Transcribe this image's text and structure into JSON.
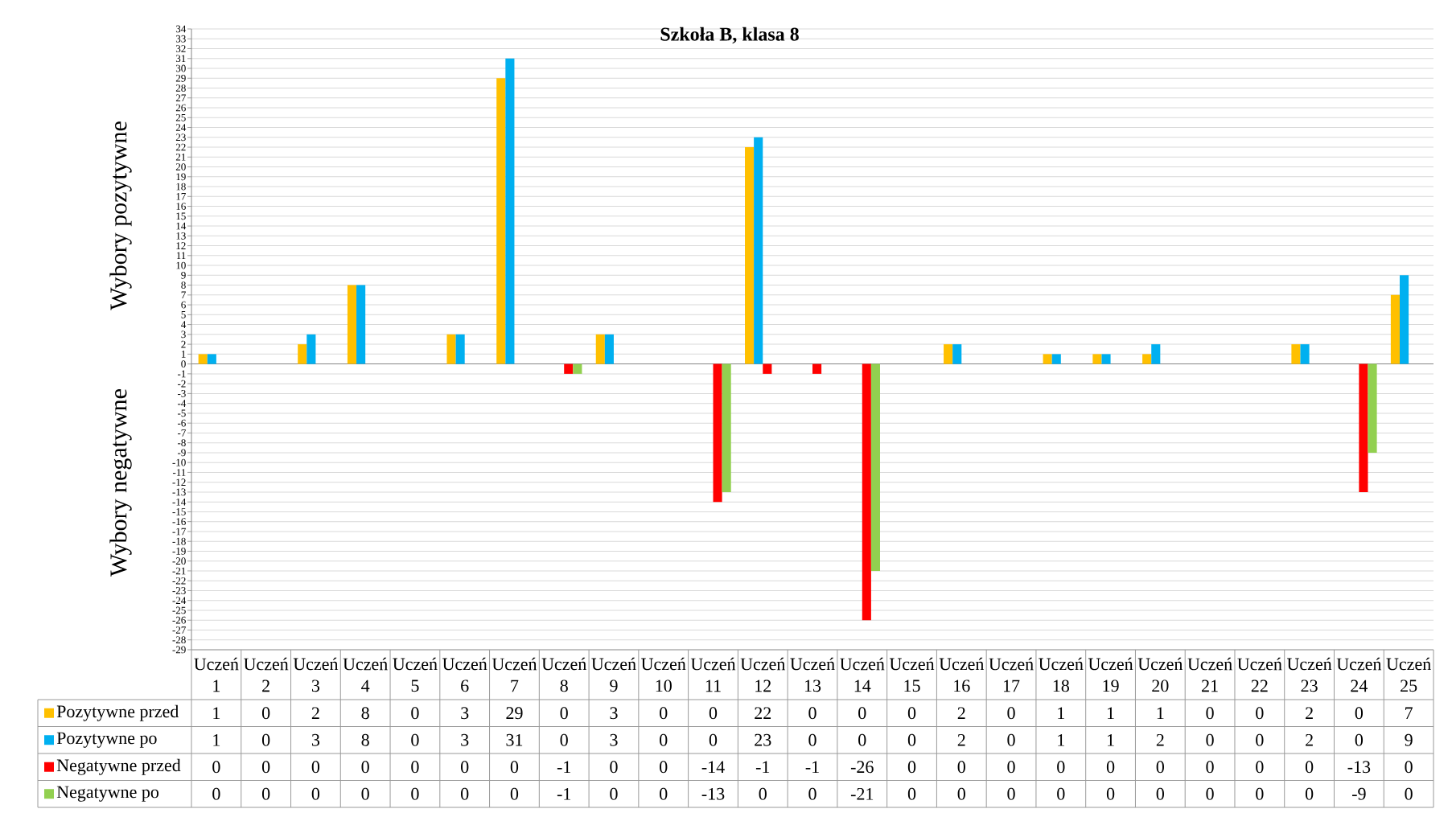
{
  "chart_data": {
    "type": "bar",
    "title": "Szkoła B, klasa 8",
    "ylabel": "Wybory pozytywne",
    "annotations": [
      "Wybory negatywne"
    ],
    "categories": [
      "Uczeń 1",
      "Uczeń 2",
      "Uczeń 3",
      "Uczeń 4",
      "Uczeń 5",
      "Uczeń 6",
      "Uczeń 7",
      "Uczeń 8",
      "Uczeń 9",
      "Uczeń 10",
      "Uczeń 11",
      "Uczeń 12",
      "Uczeń 13",
      "Uczeń 14",
      "Uczeń 15",
      "Uczeń 16",
      "Uczeń 17",
      "Uczeń 18",
      "Uczeń 19",
      "Uczeń 20",
      "Uczeń 21",
      "Uczeń 22",
      "Uczeń 23",
      "Uczeń 24",
      "Uczeń 25"
    ],
    "series": [
      {
        "name": "Pozytywne przed",
        "color": "#ffc000",
        "values": [
          1,
          0,
          2,
          8,
          0,
          3,
          29,
          0,
          3,
          0,
          0,
          22,
          0,
          0,
          0,
          2,
          0,
          1,
          1,
          1,
          0,
          0,
          2,
          0,
          7
        ]
      },
      {
        "name": "Pozytywne po",
        "color": "#00b0f0",
        "values": [
          1,
          0,
          3,
          8,
          0,
          3,
          31,
          0,
          3,
          0,
          0,
          23,
          0,
          0,
          0,
          2,
          0,
          1,
          1,
          2,
          0,
          0,
          2,
          0,
          9
        ]
      },
      {
        "name": "Negatywne przed",
        "color": "#ff0000",
        "values": [
          0,
          0,
          0,
          0,
          0,
          0,
          0,
          -1,
          0,
          0,
          -14,
          -1,
          -1,
          -26,
          0,
          0,
          0,
          0,
          0,
          0,
          0,
          0,
          0,
          -13,
          0
        ]
      },
      {
        "name": "Negatywne po",
        "color": "#92d050",
        "values": [
          0,
          0,
          0,
          0,
          0,
          0,
          0,
          -1,
          0,
          0,
          -13,
          0,
          0,
          -21,
          0,
          0,
          0,
          0,
          0,
          0,
          0,
          0,
          0,
          -9,
          0
        ]
      }
    ],
    "ylim": [
      -29,
      34
    ],
    "yticks": [
      -29,
      -28,
      -27,
      -26,
      -25,
      -24,
      -23,
      -22,
      -21,
      -20,
      -19,
      -18,
      -17,
      -16,
      -15,
      -14,
      -13,
      -12,
      -11,
      -10,
      -9,
      -8,
      -7,
      -6,
      -5,
      -4,
      -3,
      -2,
      -1,
      0,
      1,
      2,
      3,
      4,
      5,
      6,
      7,
      8,
      9,
      10,
      11,
      12,
      13,
      14,
      15,
      16,
      17,
      18,
      19,
      20,
      21,
      22,
      23,
      24,
      25,
      26,
      27,
      28,
      29,
      30,
      31,
      32,
      33,
      34
    ],
    "grid": "y",
    "legend": "bottom",
    "data_labels": true
  }
}
